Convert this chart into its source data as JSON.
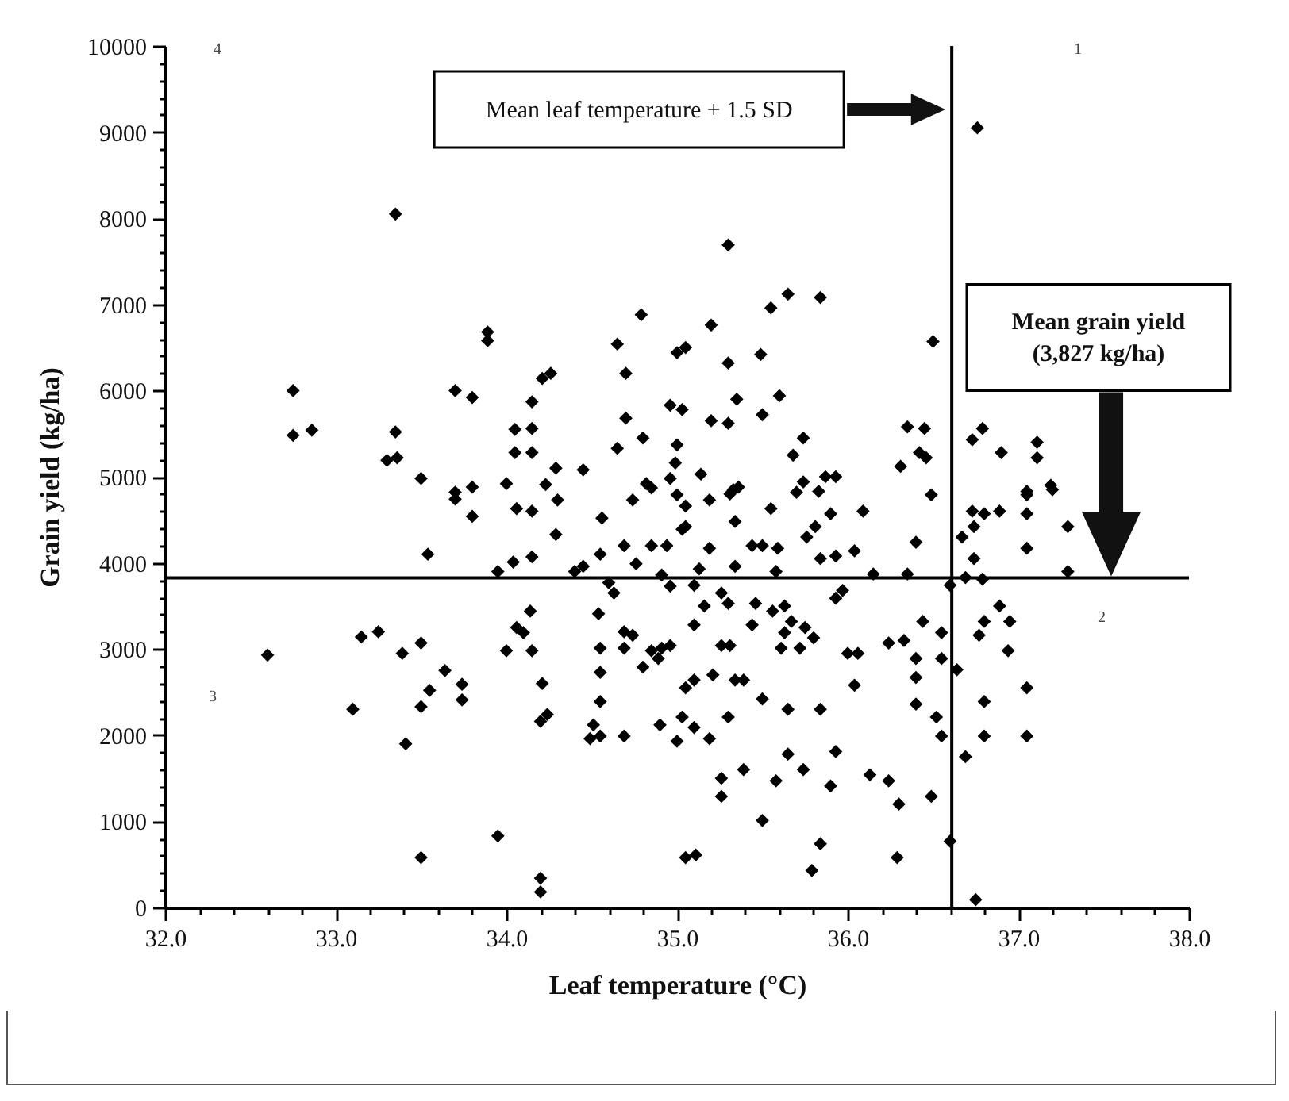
{
  "chart_data": {
    "type": "scatter",
    "xlabel": "Leaf temperature (°C)",
    "ylabel": "Grain yield (kg/ha)",
    "xlim": [
      32,
      38
    ],
    "ylim": [
      0,
      10000
    ],
    "xticks": [
      {
        "value": 32,
        "label": "32.0"
      },
      {
        "value": 32.2,
        "label": null
      },
      {
        "value": 32.4,
        "label": null
      },
      {
        "value": 32.6,
        "label": null
      },
      {
        "value": 32.8,
        "label": null
      },
      {
        "value": 33,
        "label": "33.0"
      },
      {
        "value": 33.2,
        "label": null
      },
      {
        "value": 33.4,
        "label": null
      },
      {
        "value": 33.6,
        "label": null
      },
      {
        "value": 33.8,
        "label": null
      },
      {
        "value": 34,
        "label": "34.0"
      },
      {
        "value": 34.2,
        "label": null
      },
      {
        "value": 34.4,
        "label": null
      },
      {
        "value": 34.6,
        "label": null
      },
      {
        "value": 34.8,
        "label": null
      },
      {
        "value": 35,
        "label": "35.0"
      },
      {
        "value": 35.2,
        "label": null
      },
      {
        "value": 35.4,
        "label": null
      },
      {
        "value": 35.6,
        "label": null
      },
      {
        "value": 35.8,
        "label": null
      },
      {
        "value": 36,
        "label": "36.0"
      },
      {
        "value": 36.2,
        "label": null
      },
      {
        "value": 36.4,
        "label": null
      },
      {
        "value": 36.6,
        "label": null
      },
      {
        "value": 36.8,
        "label": null
      },
      {
        "value": 37,
        "label": "37.0"
      },
      {
        "value": 37.2,
        "label": null
      },
      {
        "value": 37.4,
        "label": null
      },
      {
        "value": 37.6,
        "label": null
      },
      {
        "value": 37.8,
        "label": null
      },
      {
        "value": 38,
        "label": "38.0"
      }
    ],
    "yticks": [
      0,
      {
        "value": 200,
        "label": null
      },
      {
        "value": 400,
        "label": null
      },
      {
        "value": 600,
        "label": null
      },
      {
        "value": 800,
        "label": null
      },
      1000,
      {
        "value": 1200,
        "label": null
      },
      {
        "value": 1400,
        "label": null
      },
      {
        "value": 1600,
        "label": null
      },
      {
        "value": 1800,
        "label": null
      },
      2000,
      {
        "value": 2200,
        "label": null
      },
      {
        "value": 2400,
        "label": null
      },
      {
        "value": 2600,
        "label": null
      },
      {
        "value": 2800,
        "label": null
      },
      3000,
      {
        "value": 3200,
        "label": null
      },
      {
        "value": 3400,
        "label": null
      },
      {
        "value": 3600,
        "label": null
      },
      {
        "value": 3800,
        "label": null
      },
      4000,
      {
        "value": 4200,
        "label": null
      },
      {
        "value": 4400,
        "label": null
      },
      {
        "value": 4600,
        "label": null
      },
      {
        "value": 4800,
        "label": null
      },
      5000,
      {
        "value": 5200,
        "label": null
      },
      {
        "value": 5400,
        "label": null
      },
      {
        "value": 5600,
        "label": null
      },
      {
        "value": 5800,
        "label": null
      },
      6000,
      {
        "value": 6200,
        "label": null
      },
      {
        "value": 6400,
        "label": null
      },
      {
        "value": 6600,
        "label": null
      },
      {
        "value": 6800,
        "label": null
      },
      7000,
      {
        "value": 7200,
        "label": null
      },
      {
        "value": 7400,
        "label": null
      },
      {
        "value": 7600,
        "label": null
      },
      {
        "value": 7800,
        "label": null
      },
      8000,
      {
        "value": 8200,
        "label": null
      },
      {
        "value": 8400,
        "label": null
      },
      {
        "value": 8600,
        "label": null
      },
      {
        "value": 8800,
        "label": null
      },
      9000,
      {
        "value": 9200,
        "label": null
      },
      {
        "value": 9400,
        "label": null
      },
      {
        "value": 9600,
        "label": null
      },
      {
        "value": 9800,
        "label": null
      },
      10000
    ],
    "grid": false,
    "marker": "diamond",
    "series": [
      {
        "color": "#000000",
        "x": [
          33.35,
          32.75,
          32.75,
          32.86,
          33.35,
          33.3,
          33.36,
          33.5,
          33.89,
          33.89,
          33.7,
          33.8,
          34.21,
          34.26,
          34.15,
          34.05,
          34.15,
          34.05,
          34.15,
          34.29,
          34.23,
          34.45,
          34.0,
          33.8,
          33.7,
          34.79,
          34.65,
          34.7,
          35.0,
          35.05,
          34.65,
          34.7,
          34.8,
          34.96,
          35.03,
          35.0,
          34.99,
          34.96,
          34.82,
          36.76,
          35.3,
          35.55,
          35.65,
          35.84,
          35.2,
          36.5,
          35.3,
          35.49,
          35.35,
          35.6,
          35.2,
          35.3,
          35.5,
          35.74,
          35.68,
          35.14,
          35.33,
          35.74,
          35.87,
          35.93,
          35.83,
          36.35,
          36.45,
          36.42,
          36.31,
          36.46,
          36.73,
          36.79,
          36.9,
          37.11,
          37.11,
          37.05,
          37.19,
          33.7,
          33.8,
          34.06,
          34.15,
          34.3,
          34.29,
          34.56,
          33.54,
          33.95,
          34.04,
          34.15,
          34.4,
          34.45,
          34.55,
          34.69,
          34.76,
          34.85,
          34.94,
          34.6,
          34.63,
          34.91,
          34.96,
          34.74,
          34.85,
          35.0,
          35.03,
          34.14,
          34.06,
          34.1,
          34.0,
          34.15,
          33.15,
          33.25,
          33.39,
          33.5,
          32.6,
          33.64,
          33.55,
          33.74,
          33.74,
          33.5,
          33.1,
          33.41,
          34.21,
          34.2,
          34.24,
          34.54,
          34.55,
          34.55,
          34.55,
          34.51,
          34.55,
          34.49,
          34.69,
          34.74,
          34.69,
          34.8,
          34.85,
          34.91,
          34.96,
          34.89,
          34.69,
          34.9,
          35.05,
          35.03,
          35.0,
          33.95,
          33.5,
          34.2,
          34.2,
          35.05,
          35.05,
          35.19,
          35.31,
          35.36,
          35.05,
          35.19,
          35.34,
          35.55,
          35.7,
          35.76,
          35.81,
          35.9,
          36.09,
          36.49,
          36.4,
          35.44,
          35.5,
          35.59,
          35.84,
          35.93,
          36.04,
          35.13,
          35.34,
          35.58,
          35.1,
          35.26,
          35.3,
          35.46,
          35.16,
          35.1,
          35.56,
          35.63,
          35.67,
          35.75,
          35.8,
          35.72,
          35.61,
          35.63,
          35.26,
          35.31,
          35.44,
          35.97,
          35.93,
          36.15,
          36.35,
          36.6,
          36.69,
          36.79,
          36.74,
          36.67,
          36.74,
          36.8,
          36.89,
          36.73,
          37.05,
          37.05,
          37.2,
          37.29,
          37.05,
          37.29,
          36.89,
          36.95,
          36.77,
          36.8,
          36.94,
          36.64,
          36.55,
          36.44,
          36.24,
          36.33,
          36.4,
          36.55,
          36.4,
          36.0,
          36.06,
          36.04,
          36.4,
          36.52,
          36.55,
          36.69,
          36.8,
          36.8,
          37.05,
          37.05,
          35.1,
          35.21,
          35.34,
          35.39,
          35.5,
          35.65,
          35.84,
          35.3,
          35.1,
          35.19,
          35.93,
          35.65,
          35.74,
          35.39,
          35.58,
          35.26,
          35.26,
          35.5,
          35.9,
          36.13,
          36.24,
          36.3,
          36.49,
          35.84,
          35.79,
          36.29,
          35.11,
          36.6,
          36.75
        ],
        "values": [
          8050,
          6000,
          5480,
          5540,
          5520,
          5190,
          5220,
          4980,
          6680,
          6580,
          6000,
          5920,
          6140,
          6200,
          5870,
          5550,
          5560,
          5280,
          5280,
          5100,
          4910,
          5080,
          4920,
          4880,
          4820,
          6880,
          6540,
          6200,
          6440,
          6500,
          5330,
          5680,
          5450,
          5830,
          5780,
          5370,
          5160,
          4980,
          4920,
          9050,
          7690,
          6960,
          7120,
          7080,
          6760,
          6570,
          6320,
          6420,
          5900,
          5940,
          5650,
          5620,
          5720,
          5450,
          5250,
          5030,
          4850,
          4940,
          5000,
          5000,
          4830,
          5580,
          5560,
          5280,
          5120,
          5220,
          5430,
          5560,
          5280,
          5400,
          5220,
          4830,
          4900,
          4740,
          4540,
          4630,
          4600,
          4730,
          4330,
          4520,
          4100,
          3900,
          4010,
          4070,
          3900,
          3960,
          4100,
          4200,
          3990,
          4200,
          4200,
          3770,
          3650,
          3860,
          3730,
          4730,
          4870,
          4790,
          4390,
          3440,
          3250,
          3190,
          2980,
          2980,
          3140,
          3200,
          2950,
          3070,
          2930,
          2750,
          2520,
          2590,
          2410,
          2330,
          2300,
          1900,
          2600,
          2160,
          2240,
          3410,
          3010,
          2730,
          2390,
          2120,
          1990,
          1960,
          3200,
          3160,
          3010,
          2790,
          2980,
          3010,
          3040,
          2890,
          1990,
          2120,
          2550,
          2210,
          1930,
          830,
          580,
          340,
          180,
          580,
          4660,
          4730,
          4800,
          4880,
          4420,
          4170,
          4480,
          4630,
          4820,
          4300,
          4420,
          4570,
          4600,
          4790,
          4240,
          4200,
          4200,
          4170,
          4050,
          4080,
          4140,
          3930,
          3960,
          3900,
          3740,
          3650,
          3530,
          3530,
          3500,
          3280,
          3440,
          3500,
          3320,
          3250,
          3130,
          3010,
          3010,
          3190,
          3040,
          3040,
          3280,
          3680,
          3590,
          3870,
          3870,
          3740,
          3830,
          3810,
          4050,
          4300,
          4420,
          4570,
          4600,
          4600,
          4790,
          4570,
          4850,
          4420,
          4170,
          3900,
          3500,
          3320,
          3160,
          3320,
          2980,
          2760,
          3190,
          3320,
          3070,
          3100,
          2890,
          2890,
          2670,
          2950,
          2950,
          2580,
          2360,
          2210,
          1990,
          1750,
          2390,
          1990,
          2550,
          1990,
          2640,
          2700,
          2640,
          2640,
          2420,
          2300,
          2300,
          2210,
          2090,
          1960,
          1810,
          1780,
          1600,
          1600,
          1470,
          1500,
          1290,
          1010,
          1410,
          1540,
          1470,
          1200,
          1290,
          740,
          430,
          580,
          610,
          770,
          90
        ]
      }
    ],
    "ref_lines": [
      {
        "axis": "x",
        "value": 36.61,
        "color": "#000000"
      },
      {
        "axis": "y",
        "value": 3827,
        "color": "#000000"
      }
    ],
    "annotations": [
      "Mean leaf temperature + 1.5 SD",
      "Mean grain yield (3,827 kg/ha)",
      "1",
      "2",
      "3",
      "4"
    ]
  }
}
